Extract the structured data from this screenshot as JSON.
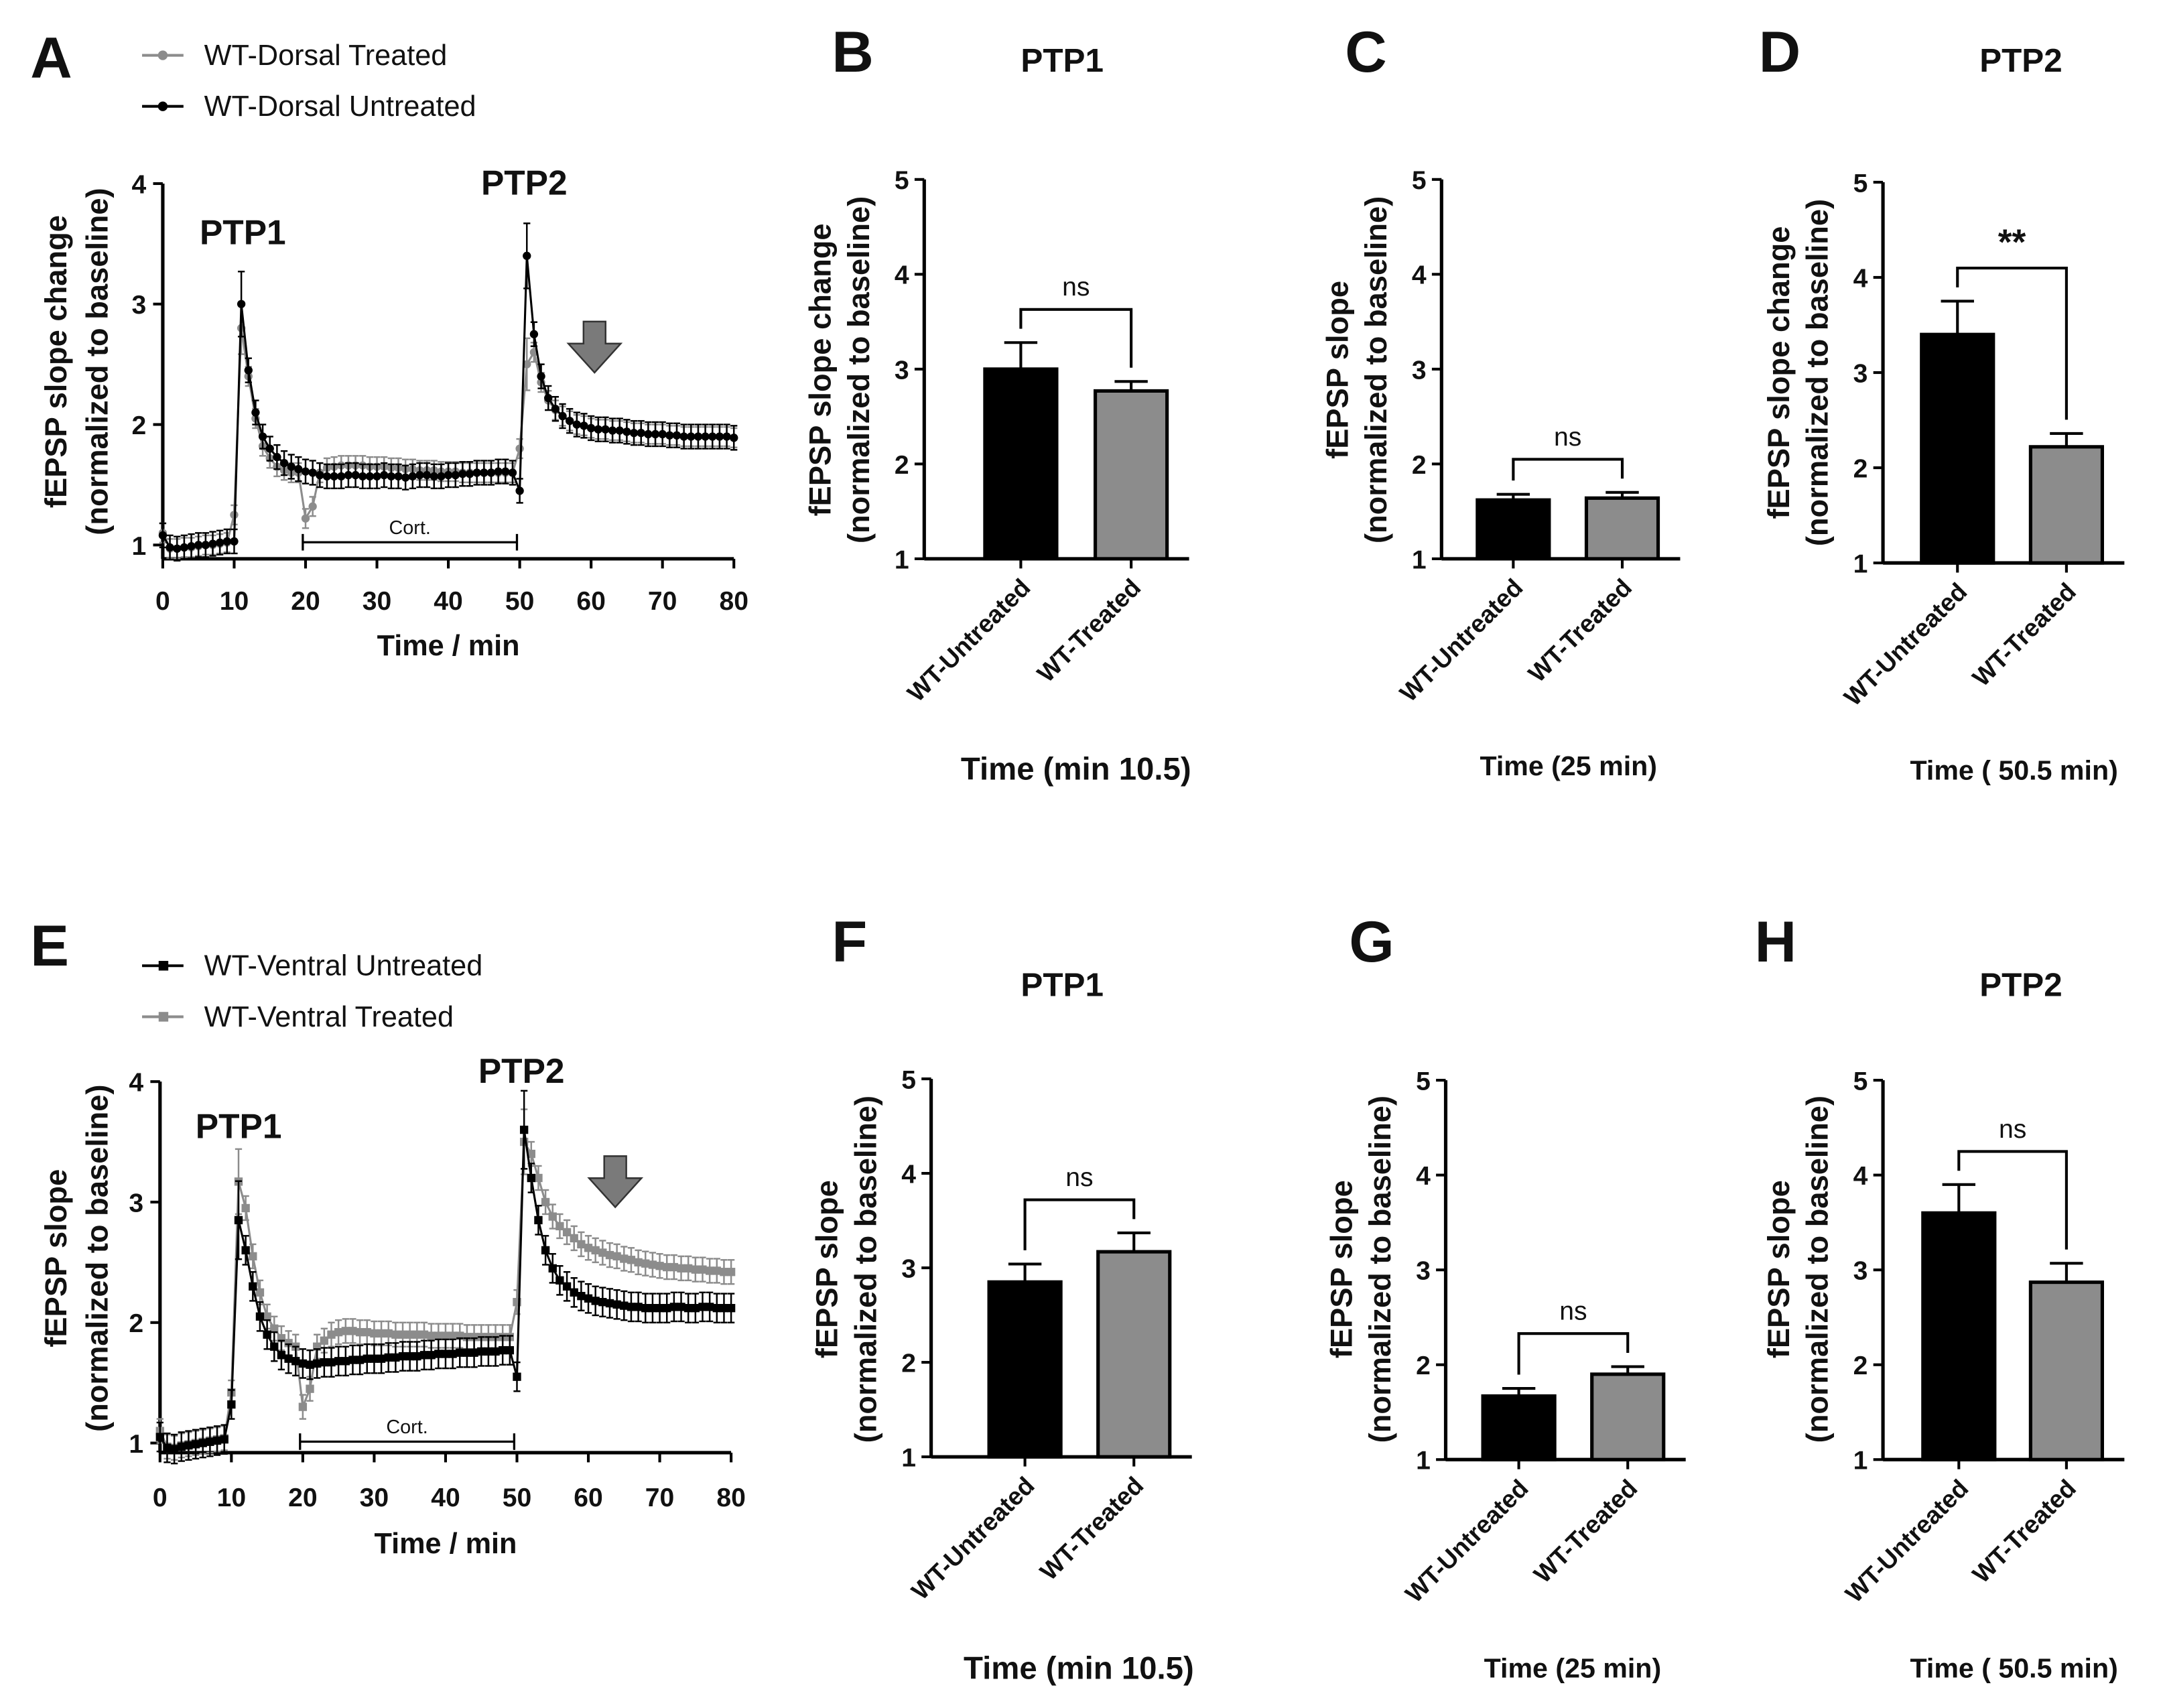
{
  "colors": {
    "untreated": "#000000",
    "treated": "#8c8c8c",
    "arrow": "#7a7a7a"
  },
  "chart_data": [
    {
      "panel": "A",
      "type": "line",
      "xlabel": "Time / min",
      "ylabel": [
        "fEPSP slope change",
        "(normalized to baseline)"
      ],
      "xlim": [
        0,
        80
      ],
      "ylim": [
        1,
        4
      ],
      "xticks": [
        "0",
        "10",
        "20",
        "30",
        "40",
        "50",
        "60",
        "70",
        "80"
      ],
      "yticks": [
        "1",
        "2",
        "3",
        "4"
      ],
      "annotations": {
        "ptp1": "PTP1",
        "ptp2": "PTP2",
        "cort": "Cort.",
        "cort_range": [
          20,
          50
        ],
        "arrow_at_min": 62
      },
      "legend_placement": "top-left",
      "x_start": 0,
      "x_step": 1,
      "series": [
        {
          "name": "WT-Dorsal Treated",
          "color": "#8c8c8c",
          "marker": "circle",
          "sem": 0.08,
          "values": [
            1.1,
            0.97,
            0.97,
            0.98,
            0.98,
            0.99,
            1.0,
            1.0,
            1.01,
            1.02,
            1.25,
            2.8,
            2.4,
            2.05,
            1.82,
            1.72,
            1.65,
            1.62,
            1.6,
            1.6,
            1.22,
            1.32,
            1.6,
            1.64,
            1.65,
            1.66,
            1.66,
            1.66,
            1.66,
            1.65,
            1.65,
            1.65,
            1.64,
            1.64,
            1.63,
            1.63,
            1.62,
            1.62,
            1.62,
            1.61,
            1.61,
            1.61,
            1.6,
            1.6,
            1.6,
            1.6,
            1.6,
            1.6,
            1.6,
            1.6,
            1.8,
            2.5,
            2.6,
            2.35,
            2.2,
            2.12,
            2.07,
            2.03,
            2.0,
            1.99,
            1.97,
            1.96,
            1.96,
            1.95,
            1.95,
            1.94,
            1.93,
            1.93,
            1.92,
            1.92,
            1.92,
            1.91,
            1.91,
            1.9,
            1.9,
            1.9,
            1.9,
            1.9,
            1.9,
            1.9,
            1.89
          ]
        },
        {
          "name": "WT-Dorsal Untreated",
          "color": "#000000",
          "marker": "circle",
          "sem": 0.1,
          "values": [
            1.08,
            0.98,
            0.97,
            0.98,
            0.99,
            1.0,
            1.0,
            1.01,
            1.02,
            1.03,
            1.03,
            3.0,
            2.45,
            2.1,
            1.9,
            1.8,
            1.73,
            1.68,
            1.65,
            1.63,
            1.61,
            1.6,
            1.58,
            1.57,
            1.57,
            1.57,
            1.58,
            1.58,
            1.57,
            1.57,
            1.57,
            1.58,
            1.57,
            1.57,
            1.56,
            1.57,
            1.58,
            1.58,
            1.57,
            1.57,
            1.58,
            1.58,
            1.59,
            1.59,
            1.6,
            1.6,
            1.6,
            1.61,
            1.61,
            1.6,
            1.45,
            3.4,
            2.75,
            2.4,
            2.22,
            2.13,
            2.07,
            2.03,
            2.0,
            1.99,
            1.97,
            1.96,
            1.96,
            1.95,
            1.95,
            1.94,
            1.93,
            1.93,
            1.92,
            1.92,
            1.92,
            1.91,
            1.91,
            1.9,
            1.9,
            1.9,
            1.9,
            1.9,
            1.9,
            1.9,
            1.89
          ]
        }
      ]
    },
    {
      "panel": "B",
      "type": "bar",
      "title": "PTP1",
      "xlabel": "Time (min 10.5)",
      "ylabel": [
        "fEPSP slope change",
        "(normalized to baseline)"
      ],
      "ylim": [
        1,
        5
      ],
      "yticks": [
        "1",
        "2",
        "3",
        "4",
        "5"
      ],
      "categories": [
        "WT-Untreated",
        "WT-Treated"
      ],
      "values": [
        3.0,
        2.77
      ],
      "errors": [
        0.28,
        0.1
      ],
      "significance": "ns"
    },
    {
      "panel": "C",
      "type": "bar",
      "title": "",
      "xlabel": "Time (25 min)",
      "ylabel": [
        "fEPSP slope",
        "(normalized to baseline)"
      ],
      "ylim": [
        1,
        5
      ],
      "yticks": [
        "1",
        "2",
        "3",
        "4",
        "5"
      ],
      "categories": [
        "WT-Untreated",
        "WT-Treated"
      ],
      "values": [
        1.62,
        1.64
      ],
      "errors": [
        0.06,
        0.06
      ],
      "significance": "ns"
    },
    {
      "panel": "D",
      "type": "bar",
      "title": "PTP2",
      "xlabel": "Time ( 50.5 min)",
      "ylabel": [
        "fEPSP slope change",
        "(normalized to baseline)"
      ],
      "ylim": [
        1,
        5
      ],
      "yticks": [
        "1",
        "2",
        "3",
        "4",
        "5"
      ],
      "categories": [
        "WT-Untreated",
        "WT-Treated"
      ],
      "values": [
        3.4,
        2.22
      ],
      "errors": [
        0.35,
        0.14
      ],
      "significance": "**"
    },
    {
      "panel": "E",
      "type": "line",
      "xlabel": "Time / min",
      "ylabel": [
        "fEPSP slope",
        "(normalized to baseline)"
      ],
      "xlim": [
        0,
        80
      ],
      "ylim": [
        1,
        4
      ],
      "xticks": [
        "0",
        "10",
        "20",
        "30",
        "40",
        "50",
        "60",
        "70",
        "80"
      ],
      "yticks": [
        "1",
        "2",
        "3",
        "4"
      ],
      "annotations": {
        "ptp1": "PTP1",
        "ptp2": "PTP2",
        "cort": "Cort.",
        "cort_range": [
          20,
          50
        ],
        "arrow_at_min": 64
      },
      "legend_placement": "top-left",
      "x_start": 0,
      "x_step": 1,
      "series": [
        {
          "name": "WT-Ventral Untreated",
          "color": "#000000",
          "marker": "square",
          "sem": 0.12,
          "values": [
            1.05,
            0.96,
            0.95,
            0.97,
            0.98,
            0.99,
            1.0,
            1.01,
            1.02,
            1.03,
            1.32,
            2.85,
            2.6,
            2.3,
            2.05,
            1.9,
            1.8,
            1.73,
            1.7,
            1.68,
            1.66,
            1.65,
            1.66,
            1.67,
            1.67,
            1.68,
            1.68,
            1.69,
            1.69,
            1.7,
            1.7,
            1.7,
            1.71,
            1.71,
            1.72,
            1.72,
            1.72,
            1.73,
            1.73,
            1.74,
            1.74,
            1.74,
            1.75,
            1.75,
            1.75,
            1.76,
            1.76,
            1.76,
            1.77,
            1.77,
            1.55,
            3.6,
            3.2,
            2.85,
            2.6,
            2.45,
            2.35,
            2.3,
            2.25,
            2.22,
            2.2,
            2.18,
            2.17,
            2.16,
            2.15,
            2.14,
            2.13,
            2.13,
            2.12,
            2.12,
            2.12,
            2.12,
            2.13,
            2.13,
            2.12,
            2.12,
            2.13,
            2.13,
            2.12,
            2.12,
            2.12
          ]
        },
        {
          "name": "WT-Ventral Treated",
          "color": "#8c8c8c",
          "marker": "square",
          "sem": 0.1,
          "values": [
            1.1,
            0.97,
            0.96,
            0.98,
            0.99,
            1.0,
            1.01,
            1.02,
            1.03,
            1.04,
            1.42,
            3.17,
            2.95,
            2.55,
            2.25,
            2.05,
            1.95,
            1.87,
            1.83,
            1.8,
            1.3,
            1.45,
            1.8,
            1.85,
            1.9,
            1.92,
            1.93,
            1.93,
            1.92,
            1.92,
            1.91,
            1.91,
            1.91,
            1.9,
            1.9,
            1.9,
            1.9,
            1.9,
            1.89,
            1.89,
            1.89,
            1.89,
            1.89,
            1.88,
            1.88,
            1.88,
            1.88,
            1.88,
            1.88,
            1.88,
            2.17,
            3.5,
            3.4,
            3.2,
            3.0,
            2.88,
            2.8,
            2.75,
            2.7,
            2.65,
            2.62,
            2.6,
            2.58,
            2.56,
            2.55,
            2.53,
            2.52,
            2.5,
            2.49,
            2.48,
            2.47,
            2.46,
            2.46,
            2.45,
            2.45,
            2.44,
            2.44,
            2.43,
            2.43,
            2.42,
            2.42
          ]
        }
      ]
    },
    {
      "panel": "F",
      "type": "bar",
      "title": "PTP1",
      "xlabel": "Time (min 10.5)",
      "ylabel": [
        "fEPSP slope",
        "(normalized to baseline)"
      ],
      "ylim": [
        1,
        5
      ],
      "yticks": [
        "1",
        "2",
        "3",
        "4",
        "5"
      ],
      "categories": [
        "WT-Untreated",
        "WT-Treated"
      ],
      "values": [
        2.85,
        3.17
      ],
      "errors": [
        0.19,
        0.2
      ],
      "significance": "ns"
    },
    {
      "panel": "G",
      "type": "bar",
      "title": "",
      "xlabel": "Time (25 min)",
      "ylabel": [
        "fEPSP slope",
        "(normalized to baseline)"
      ],
      "ylim": [
        1,
        5
      ],
      "yticks": [
        "1",
        "2",
        "3",
        "4",
        "5"
      ],
      "categories": [
        "WT-Untreated",
        "WT-Treated"
      ],
      "values": [
        1.67,
        1.9
      ],
      "errors": [
        0.08,
        0.08
      ],
      "significance": "ns"
    },
    {
      "panel": "H",
      "type": "bar",
      "title": "PTP2",
      "xlabel": "Time ( 50.5 min)",
      "ylabel": [
        "fEPSP slope",
        "(normalized to baseline)"
      ],
      "ylim": [
        1,
        5
      ],
      "yticks": [
        "1",
        "2",
        "3",
        "4",
        "5"
      ],
      "categories": [
        "WT-Untreated",
        "WT-Treated"
      ],
      "values": [
        3.6,
        2.87
      ],
      "errors": [
        0.3,
        0.2
      ],
      "significance": "ns"
    }
  ]
}
